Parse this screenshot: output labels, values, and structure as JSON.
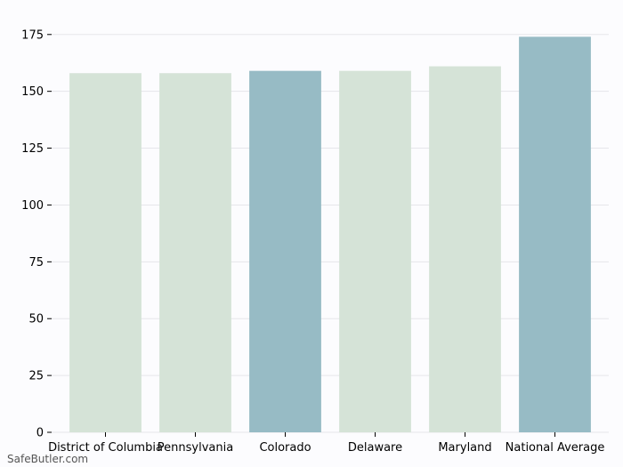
{
  "chart_data": {
    "type": "bar",
    "categories": [
      "District of Columbia",
      "Pennsylvania",
      "Colorado",
      "Delaware",
      "Maryland",
      "National Average"
    ],
    "values": [
      158,
      158,
      159,
      159,
      161,
      174
    ],
    "bar_colors": [
      "#d5e3d7",
      "#d5e3d7",
      "#97bbc5",
      "#d5e3d7",
      "#d5e3d7",
      "#97bbc5"
    ],
    "yticks": [
      0,
      25,
      50,
      75,
      100,
      125,
      150,
      175
    ],
    "ylim": [
      0,
      180
    ],
    "grid": true,
    "title": "",
    "xlabel": "",
    "ylabel": ""
  },
  "watermark": "SafeButler.com"
}
